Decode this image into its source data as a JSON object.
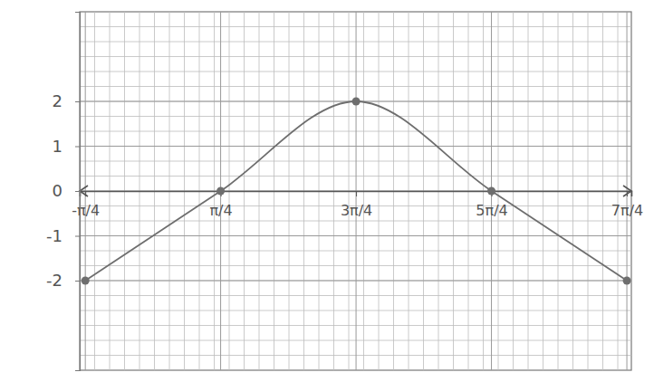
{
  "chart_data": {
    "type": "line",
    "x": [
      -0.785,
      0.785,
      2.356,
      3.927,
      5.498
    ],
    "series": [
      {
        "color": "#6e6e6e",
        "values": [
          -2,
          0,
          2,
          0,
          -2
        ],
        "marker": "circle"
      }
    ],
    "xlim": [
      -0.85,
      5.55
    ],
    "xticks": [
      {
        "value": -0.785,
        "label": "-π/4"
      },
      {
        "value": 0.785,
        "label": "π/4"
      },
      {
        "value": 2.356,
        "label": "3π/4"
      },
      {
        "value": 3.927,
        "label": "5π/4"
      },
      {
        "value": 5.498,
        "label": "7π/4"
      }
    ],
    "ylim": [
      -4,
      4
    ],
    "yticks": [
      -2,
      -1,
      0,
      1,
      2
    ],
    "grid": true
  }
}
